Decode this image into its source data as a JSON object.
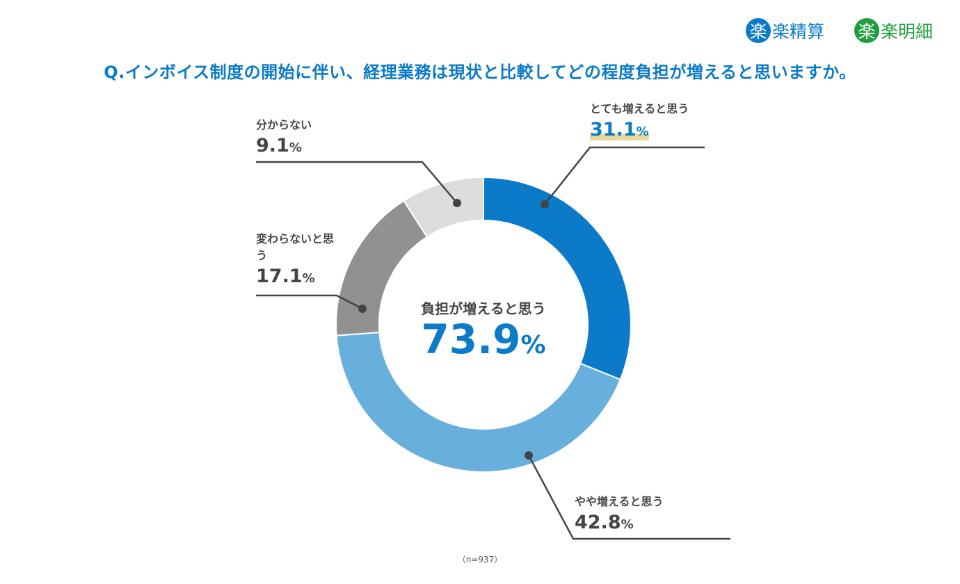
{
  "logos": [
    {
      "mark": "楽",
      "text": "楽精算",
      "color": "#0a7ac9"
    },
    {
      "mark": "楽",
      "text": "楽明細",
      "color": "#1e9e3e"
    }
  ],
  "chart_data": {
    "type": "pie",
    "donut": true,
    "title": "Q.インボイス制度の開始に伴い、経理業務は現状と比較してどの程度負担が増えると思いますか。",
    "center_label": "負担が増えると思う",
    "center_value": "73.9",
    "unit": "%",
    "categories": [
      "とても増えると思う",
      "やや増えると思う",
      "変わらないと思う",
      "分からない"
    ],
    "values": [
      31.1,
      42.8,
      17.1,
      9.1
    ],
    "colors": [
      "#0a7ac9",
      "#67b0de",
      "#919191",
      "#dcdcdb"
    ],
    "highlight_color": "#e8d99a",
    "note": "（n=937）"
  }
}
